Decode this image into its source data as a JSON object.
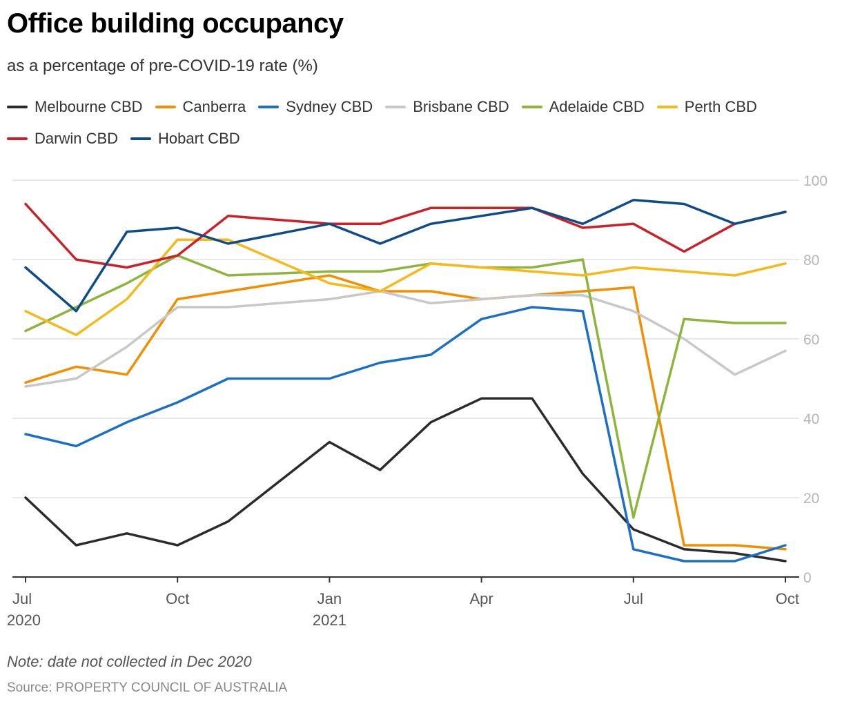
{
  "title": "Office building occupancy",
  "subtitle": "as a percentage of pre-COVID-19 rate (%)",
  "note": "Note: date not collected in Dec 2020",
  "source": "Source: PROPERTY COUNCIL OF AUSTRALIA",
  "chart_data": {
    "type": "line",
    "title": "Office building occupancy",
    "subtitle": "as a percentage of pre-COVID-19 rate (%)",
    "x": [
      "2020-07",
      "2020-08",
      "2020-09",
      "2020-10",
      "2020-11",
      "2021-01",
      "2021-02",
      "2021-03",
      "2021-04",
      "2021-05",
      "2021-06",
      "2021-07",
      "2021-08",
      "2021-09",
      "2021-10"
    ],
    "x_ticks": [
      {
        "date": "2020-07",
        "label": "Jul",
        "sublabel": "2020"
      },
      {
        "date": "2020-10",
        "label": "Oct",
        "sublabel": ""
      },
      {
        "date": "2021-01",
        "label": "Jan",
        "sublabel": "2021"
      },
      {
        "date": "2021-04",
        "label": "Apr",
        "sublabel": ""
      },
      {
        "date": "2021-07",
        "label": "Jul",
        "sublabel": ""
      },
      {
        "date": "2021-10",
        "label": "Oct",
        "sublabel": ""
      }
    ],
    "y_ticks": [
      0,
      20,
      40,
      60,
      80,
      100
    ],
    "ylim": [
      0,
      100
    ],
    "grid": true,
    "legend_position": "top",
    "series": [
      {
        "name": "Melbourne CBD",
        "color": "#2b2b2b",
        "values": [
          20,
          8,
          11,
          8,
          14,
          34,
          27,
          39,
          45,
          45,
          26,
          12,
          7,
          6,
          4
        ]
      },
      {
        "name": "Canberra",
        "color": "#f28e00",
        "values": [
          49,
          53,
          51,
          70,
          72,
          76,
          72,
          72,
          70,
          71,
          72,
          73,
          8,
          8,
          7
        ]
      },
      {
        "name": "Sydney CBD",
        "color": "#1b6fc7",
        "values": [
          36,
          33,
          39,
          44,
          50,
          50,
          54,
          56,
          65,
          68,
          67,
          7,
          4,
          4,
          8
        ]
      },
      {
        "name": "Brisbane CBD",
        "color": "#c8c8c8",
        "values": [
          48,
          50,
          58,
          68,
          68,
          70,
          72,
          69,
          70,
          71,
          71,
          67,
          60,
          51,
          57
        ]
      },
      {
        "name": "Adelaide CBD",
        "color": "#8db53c",
        "values": [
          62,
          68,
          74,
          81,
          76,
          77,
          77,
          79,
          78,
          78,
          80,
          15,
          65,
          64,
          64
        ]
      },
      {
        "name": "Perth CBD",
        "color": "#f7b81a",
        "values": [
          67,
          61,
          70,
          85,
          85,
          74,
          72,
          79,
          78,
          77,
          76,
          78,
          77,
          76,
          79
        ]
      },
      {
        "name": "Darwin CBD",
        "color": "#cc2028",
        "values": [
          94,
          80,
          78,
          81,
          91,
          89,
          89,
          93,
          93,
          93,
          88,
          89,
          82,
          89,
          92
        ]
      },
      {
        "name": "Hobart CBD",
        "color": "#0d4c86",
        "values": [
          78,
          67,
          87,
          88,
          84,
          89,
          84,
          89,
          91,
          93,
          89,
          95,
          94,
          89,
          92
        ]
      }
    ]
  }
}
